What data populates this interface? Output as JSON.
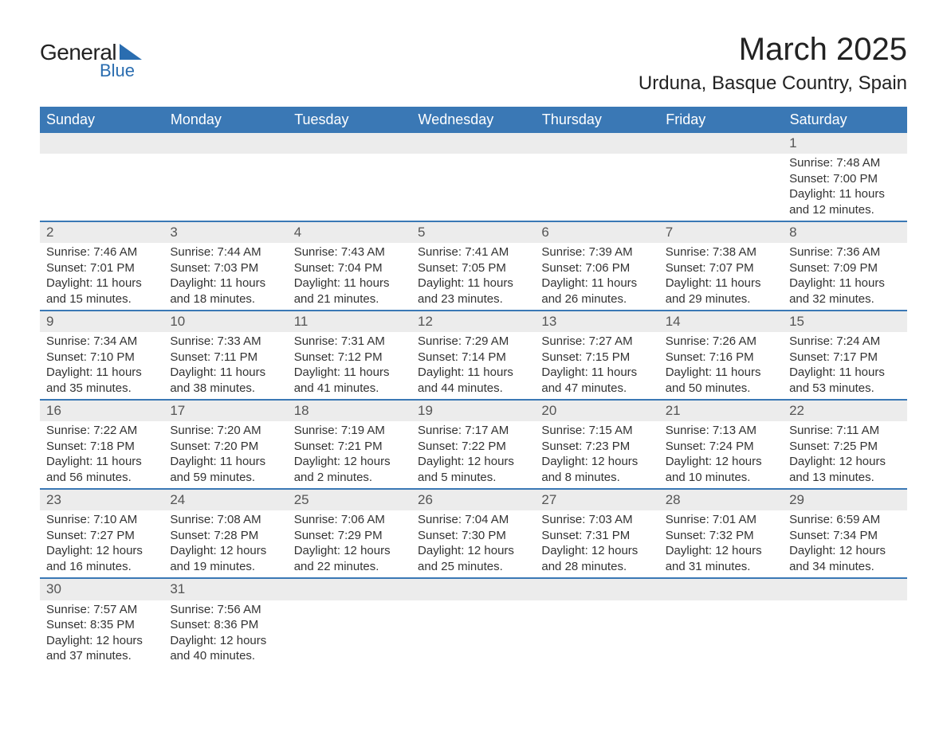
{
  "logo": {
    "text_primary": "General",
    "text_secondary": "Blue",
    "accent_color": "#2a6db0"
  },
  "title": {
    "month": "March 2025",
    "location": "Urduna, Basque Country, Spain"
  },
  "colors": {
    "header_bg": "#3a78b5",
    "header_text": "#ffffff",
    "day_number_bg": "#ececec",
    "row_border": "#3a78b5",
    "text": "#333333",
    "background": "#ffffff"
  },
  "day_headers": [
    "Sunday",
    "Monday",
    "Tuesday",
    "Wednesday",
    "Thursday",
    "Friday",
    "Saturday"
  ],
  "weeks": [
    [
      null,
      null,
      null,
      null,
      null,
      null,
      {
        "n": "1",
        "sunrise": "Sunrise: 7:48 AM",
        "sunset": "Sunset: 7:00 PM",
        "daylight1": "Daylight: 11 hours",
        "daylight2": "and 12 minutes."
      }
    ],
    [
      {
        "n": "2",
        "sunrise": "Sunrise: 7:46 AM",
        "sunset": "Sunset: 7:01 PM",
        "daylight1": "Daylight: 11 hours",
        "daylight2": "and 15 minutes."
      },
      {
        "n": "3",
        "sunrise": "Sunrise: 7:44 AM",
        "sunset": "Sunset: 7:03 PM",
        "daylight1": "Daylight: 11 hours",
        "daylight2": "and 18 minutes."
      },
      {
        "n": "4",
        "sunrise": "Sunrise: 7:43 AM",
        "sunset": "Sunset: 7:04 PM",
        "daylight1": "Daylight: 11 hours",
        "daylight2": "and 21 minutes."
      },
      {
        "n": "5",
        "sunrise": "Sunrise: 7:41 AM",
        "sunset": "Sunset: 7:05 PM",
        "daylight1": "Daylight: 11 hours",
        "daylight2": "and 23 minutes."
      },
      {
        "n": "6",
        "sunrise": "Sunrise: 7:39 AM",
        "sunset": "Sunset: 7:06 PM",
        "daylight1": "Daylight: 11 hours",
        "daylight2": "and 26 minutes."
      },
      {
        "n": "7",
        "sunrise": "Sunrise: 7:38 AM",
        "sunset": "Sunset: 7:07 PM",
        "daylight1": "Daylight: 11 hours",
        "daylight2": "and 29 minutes."
      },
      {
        "n": "8",
        "sunrise": "Sunrise: 7:36 AM",
        "sunset": "Sunset: 7:09 PM",
        "daylight1": "Daylight: 11 hours",
        "daylight2": "and 32 minutes."
      }
    ],
    [
      {
        "n": "9",
        "sunrise": "Sunrise: 7:34 AM",
        "sunset": "Sunset: 7:10 PM",
        "daylight1": "Daylight: 11 hours",
        "daylight2": "and 35 minutes."
      },
      {
        "n": "10",
        "sunrise": "Sunrise: 7:33 AM",
        "sunset": "Sunset: 7:11 PM",
        "daylight1": "Daylight: 11 hours",
        "daylight2": "and 38 minutes."
      },
      {
        "n": "11",
        "sunrise": "Sunrise: 7:31 AM",
        "sunset": "Sunset: 7:12 PM",
        "daylight1": "Daylight: 11 hours",
        "daylight2": "and 41 minutes."
      },
      {
        "n": "12",
        "sunrise": "Sunrise: 7:29 AM",
        "sunset": "Sunset: 7:14 PM",
        "daylight1": "Daylight: 11 hours",
        "daylight2": "and 44 minutes."
      },
      {
        "n": "13",
        "sunrise": "Sunrise: 7:27 AM",
        "sunset": "Sunset: 7:15 PM",
        "daylight1": "Daylight: 11 hours",
        "daylight2": "and 47 minutes."
      },
      {
        "n": "14",
        "sunrise": "Sunrise: 7:26 AM",
        "sunset": "Sunset: 7:16 PM",
        "daylight1": "Daylight: 11 hours",
        "daylight2": "and 50 minutes."
      },
      {
        "n": "15",
        "sunrise": "Sunrise: 7:24 AM",
        "sunset": "Sunset: 7:17 PM",
        "daylight1": "Daylight: 11 hours",
        "daylight2": "and 53 minutes."
      }
    ],
    [
      {
        "n": "16",
        "sunrise": "Sunrise: 7:22 AM",
        "sunset": "Sunset: 7:18 PM",
        "daylight1": "Daylight: 11 hours",
        "daylight2": "and 56 minutes."
      },
      {
        "n": "17",
        "sunrise": "Sunrise: 7:20 AM",
        "sunset": "Sunset: 7:20 PM",
        "daylight1": "Daylight: 11 hours",
        "daylight2": "and 59 minutes."
      },
      {
        "n": "18",
        "sunrise": "Sunrise: 7:19 AM",
        "sunset": "Sunset: 7:21 PM",
        "daylight1": "Daylight: 12 hours",
        "daylight2": "and 2 minutes."
      },
      {
        "n": "19",
        "sunrise": "Sunrise: 7:17 AM",
        "sunset": "Sunset: 7:22 PM",
        "daylight1": "Daylight: 12 hours",
        "daylight2": "and 5 minutes."
      },
      {
        "n": "20",
        "sunrise": "Sunrise: 7:15 AM",
        "sunset": "Sunset: 7:23 PM",
        "daylight1": "Daylight: 12 hours",
        "daylight2": "and 8 minutes."
      },
      {
        "n": "21",
        "sunrise": "Sunrise: 7:13 AM",
        "sunset": "Sunset: 7:24 PM",
        "daylight1": "Daylight: 12 hours",
        "daylight2": "and 10 minutes."
      },
      {
        "n": "22",
        "sunrise": "Sunrise: 7:11 AM",
        "sunset": "Sunset: 7:25 PM",
        "daylight1": "Daylight: 12 hours",
        "daylight2": "and 13 minutes."
      }
    ],
    [
      {
        "n": "23",
        "sunrise": "Sunrise: 7:10 AM",
        "sunset": "Sunset: 7:27 PM",
        "daylight1": "Daylight: 12 hours",
        "daylight2": "and 16 minutes."
      },
      {
        "n": "24",
        "sunrise": "Sunrise: 7:08 AM",
        "sunset": "Sunset: 7:28 PM",
        "daylight1": "Daylight: 12 hours",
        "daylight2": "and 19 minutes."
      },
      {
        "n": "25",
        "sunrise": "Sunrise: 7:06 AM",
        "sunset": "Sunset: 7:29 PM",
        "daylight1": "Daylight: 12 hours",
        "daylight2": "and 22 minutes."
      },
      {
        "n": "26",
        "sunrise": "Sunrise: 7:04 AM",
        "sunset": "Sunset: 7:30 PM",
        "daylight1": "Daylight: 12 hours",
        "daylight2": "and 25 minutes."
      },
      {
        "n": "27",
        "sunrise": "Sunrise: 7:03 AM",
        "sunset": "Sunset: 7:31 PM",
        "daylight1": "Daylight: 12 hours",
        "daylight2": "and 28 minutes."
      },
      {
        "n": "28",
        "sunrise": "Sunrise: 7:01 AM",
        "sunset": "Sunset: 7:32 PM",
        "daylight1": "Daylight: 12 hours",
        "daylight2": "and 31 minutes."
      },
      {
        "n": "29",
        "sunrise": "Sunrise: 6:59 AM",
        "sunset": "Sunset: 7:34 PM",
        "daylight1": "Daylight: 12 hours",
        "daylight2": "and 34 minutes."
      }
    ],
    [
      {
        "n": "30",
        "sunrise": "Sunrise: 7:57 AM",
        "sunset": "Sunset: 8:35 PM",
        "daylight1": "Daylight: 12 hours",
        "daylight2": "and 37 minutes."
      },
      {
        "n": "31",
        "sunrise": "Sunrise: 7:56 AM",
        "sunset": "Sunset: 8:36 PM",
        "daylight1": "Daylight: 12 hours",
        "daylight2": "and 40 minutes."
      },
      null,
      null,
      null,
      null,
      null
    ]
  ]
}
